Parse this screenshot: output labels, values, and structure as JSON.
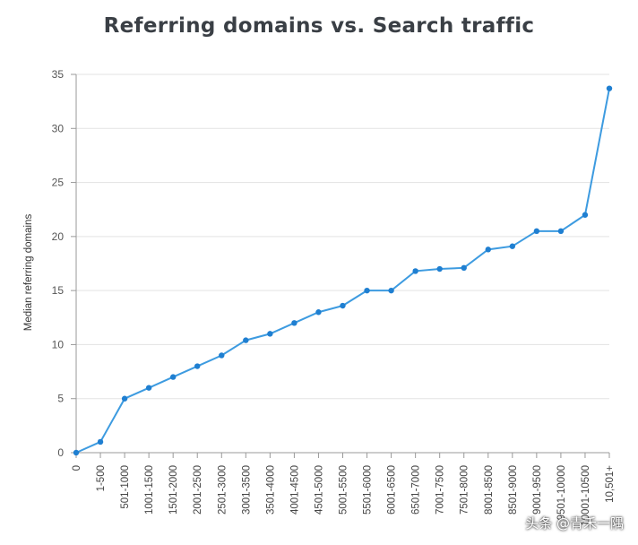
{
  "chart_data": {
    "type": "line",
    "title": "Referring domains vs. Search traffic",
    "xlabel": "",
    "ylabel": "Median referring domains",
    "ylim": [
      0,
      35
    ],
    "yticks": [
      0,
      5,
      10,
      15,
      20,
      25,
      30,
      35
    ],
    "grid": true,
    "color": "#3d9be0",
    "categories": [
      "0",
      "1-500",
      "501-1000",
      "1001-1500",
      "1501-2000",
      "2001-2500",
      "2501-3000",
      "3001-3500",
      "3501-4000",
      "4001-4500",
      "4501-5000",
      "5001-5500",
      "5501-6000",
      "6001-6500",
      "6501-7000",
      "7001-7500",
      "7501-8000",
      "8001-8500",
      "8501-9000",
      "9001-9500",
      "9501-10000",
      "10001-10500",
      "10,501+"
    ],
    "values": [
      0,
      1,
      5,
      6,
      7,
      8,
      9,
      10.4,
      11,
      12,
      13,
      13.6,
      15,
      15,
      16.8,
      17,
      17.1,
      18.8,
      19.1,
      20.5,
      20.5,
      22,
      33.7
    ]
  },
  "watermark": "头条 @青禾一隅"
}
